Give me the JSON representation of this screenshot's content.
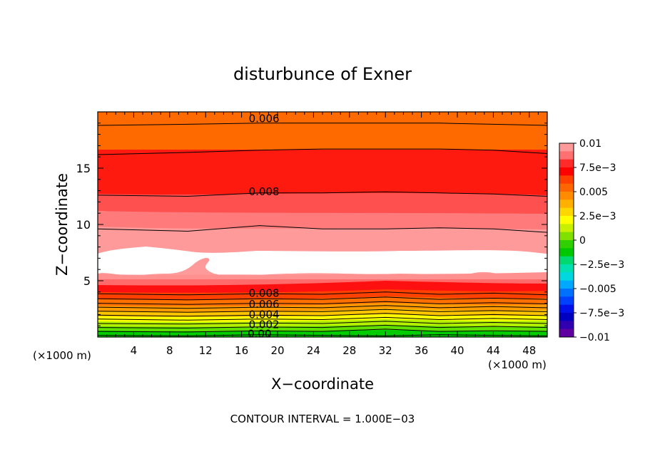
{
  "chart_data": {
    "type": "contour",
    "title": "disturbunce of Exner",
    "xlabel": "X−coordinate",
    "ylabel": "Z−coordinate",
    "x_unit": "(×1000 m)",
    "y_unit": "(×1000 m)",
    "footer": "CONTOUR INTERVAL = 1.000E−03",
    "xlim": [
      0,
      50
    ],
    "ylim": [
      0,
      20
    ],
    "x_ticks": [
      4,
      8,
      12,
      16,
      20,
      24,
      28,
      32,
      36,
      40,
      44,
      48
    ],
    "y_ticks": [
      5,
      10,
      15
    ],
    "contour_interval": 0.001,
    "contour_labels": [
      {
        "text": "0.006",
        "x": 18.5,
        "z": 19.4
      },
      {
        "text": "0.008",
        "x": 18.5,
        "z": 12.9
      },
      {
        "text": "0.008",
        "x": 18.5,
        "z": 3.9
      },
      {
        "text": "0.006",
        "x": 18.5,
        "z": 2.9
      },
      {
        "text": "0.004",
        "x": 18.5,
        "z": 2.0
      },
      {
        "text": "0.002",
        "x": 18.5,
        "z": 1.1
      },
      {
        "text": "0.00",
        "x": 18.0,
        "z": 0.3
      }
    ],
    "colorbar": {
      "min": -0.01,
      "max": 0.01,
      "labels": [
        "0.01",
        "7.5e−3",
        "0.005",
        "2.5e−3",
        "0",
        "−2.5e−3",
        "−0.005",
        "−7.5e−3",
        "−0.01"
      ],
      "colors": [
        "#ff9a9a",
        "#ff7070",
        "#ff2a2a",
        "#ff0000",
        "#ff4000",
        "#ff6600",
        "#ff8c00",
        "#ffb000",
        "#ffd700",
        "#ffff00",
        "#c8f000",
        "#80e000",
        "#30d000",
        "#00c800",
        "#00d870",
        "#00e0b0",
        "#00d8e0",
        "#00a8ff",
        "#0070ff",
        "#0040ff",
        "#0010e8",
        "#0000c0",
        "#3000b0",
        "#6000a0"
      ]
    },
    "profile_lines": [
      {
        "x": [
          0,
          10,
          18,
          25,
          32,
          38,
          44,
          50
        ],
        "z": [
          0.15,
          0.1,
          0.2,
          0.15,
          0.1,
          0.2,
          0.15,
          0.1
        ]
      },
      {
        "x": [
          0,
          10,
          18,
          25,
          32,
          38,
          44,
          50
        ],
        "z": [
          0.5,
          0.45,
          0.55,
          0.5,
          0.7,
          0.5,
          0.55,
          0.5
        ]
      },
      {
        "x": [
          0,
          10,
          18,
          25,
          32,
          38,
          44,
          50
        ],
        "z": [
          0.85,
          0.8,
          0.9,
          0.85,
          1.05,
          0.85,
          0.95,
          0.85
        ]
      },
      {
        "x": [
          0,
          10,
          18,
          25,
          32,
          38,
          44,
          50
        ],
        "z": [
          1.2,
          1.15,
          1.25,
          1.2,
          1.4,
          1.2,
          1.3,
          1.2
        ]
      },
      {
        "x": [
          0,
          10,
          18,
          25,
          32,
          38,
          44,
          50
        ],
        "z": [
          1.6,
          1.5,
          1.6,
          1.55,
          1.75,
          1.55,
          1.65,
          1.55
        ]
      },
      {
        "x": [
          0,
          10,
          18,
          25,
          32,
          38,
          44,
          50
        ],
        "z": [
          1.95,
          1.85,
          1.95,
          1.9,
          2.1,
          1.9,
          2.0,
          1.9
        ]
      },
      {
        "x": [
          0,
          10,
          18,
          25,
          32,
          38,
          44,
          50
        ],
        "z": [
          2.3,
          2.2,
          2.3,
          2.25,
          2.45,
          2.25,
          2.35,
          2.25
        ]
      },
      {
        "x": [
          0,
          10,
          18,
          25,
          32,
          38,
          44,
          50
        ],
        "z": [
          2.65,
          2.55,
          2.65,
          2.6,
          2.8,
          2.6,
          2.7,
          2.6
        ]
      },
      {
        "x": [
          0,
          10,
          18,
          25,
          32,
          38,
          44,
          50
        ],
        "z": [
          3.0,
          2.9,
          3.0,
          2.95,
          3.15,
          2.95,
          3.05,
          2.95
        ]
      },
      {
        "x": [
          0,
          10,
          18,
          25,
          32,
          38,
          44,
          50
        ],
        "z": [
          3.4,
          3.3,
          3.4,
          3.35,
          3.55,
          3.35,
          3.45,
          3.35
        ]
      },
      {
        "x": [
          0,
          10,
          18,
          25,
          32,
          38,
          44,
          50
        ],
        "z": [
          3.85,
          3.75,
          3.85,
          3.8,
          4.0,
          3.8,
          3.9,
          3.75
        ]
      },
      {
        "x": [
          0,
          10,
          18,
          25,
          32,
          38,
          44,
          50
        ],
        "z": [
          9.6,
          9.4,
          9.9,
          9.6,
          9.6,
          9.7,
          9.6,
          9.3
        ]
      },
      {
        "x": [
          0,
          10,
          18,
          25,
          32,
          38,
          44,
          50
        ],
        "z": [
          12.6,
          12.5,
          12.8,
          12.8,
          12.9,
          12.8,
          12.7,
          12.5
        ]
      },
      {
        "x": [
          0,
          10,
          18,
          25,
          32,
          38,
          44,
          50
        ],
        "z": [
          16.2,
          16.4,
          16.6,
          16.7,
          16.7,
          16.7,
          16.6,
          16.3
        ]
      },
      {
        "x": [
          0,
          10,
          18,
          25,
          32,
          38,
          44,
          50
        ],
        "z": [
          18.8,
          18.9,
          19.0,
          19.0,
          19.0,
          19.0,
          18.9,
          18.8
        ]
      }
    ]
  }
}
